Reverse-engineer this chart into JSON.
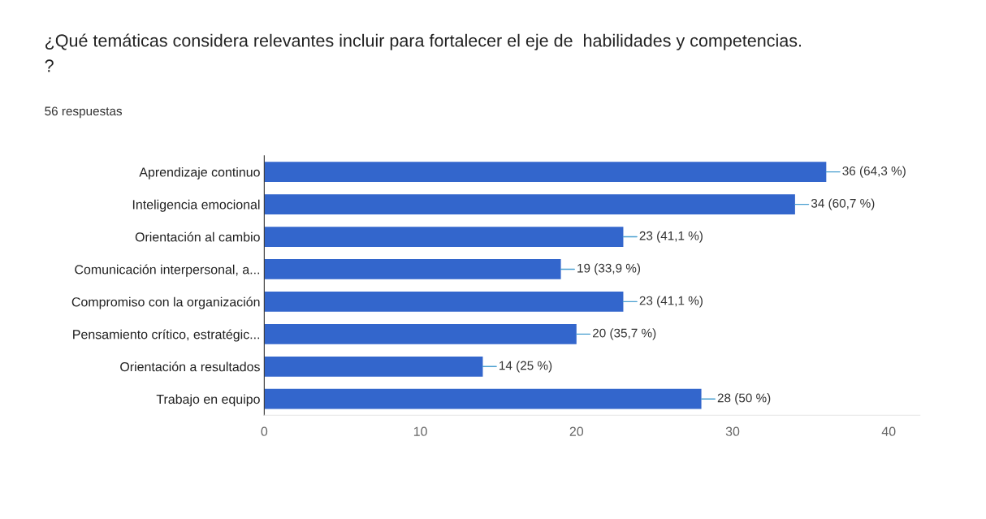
{
  "chart_data": {
    "type": "bar",
    "orientation": "horizontal",
    "title": "¿Qué temáticas considera relevantes incluir para fortalecer el eje de  habilidades y competencias.\n?",
    "subtitle": "56 respuestas",
    "categories": [
      "Aprendizaje continuo",
      "Inteligencia emocional",
      "Orientación al cambio",
      "Comunicación interpersonal, a...",
      "Compromiso con la organización",
      "Pensamiento crítico, estratégic...",
      "Orientación a resultados",
      "Trabajo en equipo"
    ],
    "values": [
      36,
      34,
      23,
      19,
      23,
      20,
      14,
      28
    ],
    "value_labels": [
      "36 (64,3 %)",
      "34 (60,7 %)",
      "23 (41,1 %)",
      "19 (33,9 %)",
      "23 (41,1 %)",
      "20 (35,7 %)",
      "14 (25 %)",
      "28 (50 %)"
    ],
    "color": "#3366cc",
    "xlim": [
      0,
      42
    ],
    "xticks": [
      0,
      10,
      20,
      30,
      40
    ]
  }
}
